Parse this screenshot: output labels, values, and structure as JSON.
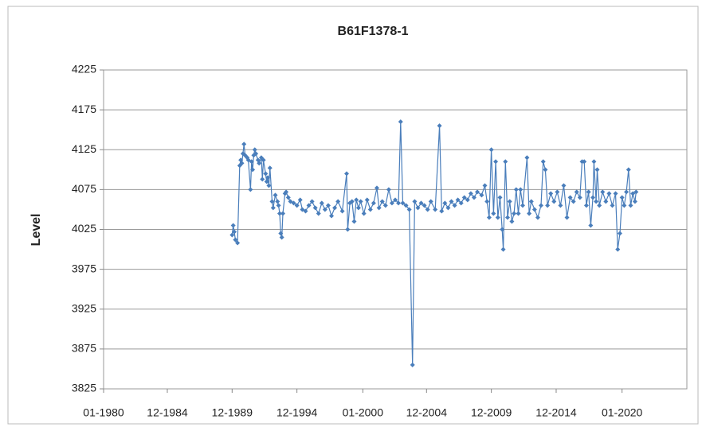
{
  "chart_data": {
    "type": "line",
    "title": "B61F1378-1",
    "y_label": "Level",
    "xlim": [
      "1980-01",
      "2025-01"
    ],
    "xticks": [
      {
        "value": "1980-01",
        "label": "01-1980"
      },
      {
        "value": "1984-12",
        "label": "12-1984"
      },
      {
        "value": "1989-12",
        "label": "12-1989"
      },
      {
        "value": "1994-12",
        "label": "12-1994"
      },
      {
        "value": "2000-01",
        "label": "01-2000"
      },
      {
        "value": "2004-12",
        "label": "12-2004"
      },
      {
        "value": "2009-12",
        "label": "12-2009"
      },
      {
        "value": "2014-12",
        "label": "12-2014"
      },
      {
        "value": "2020-01",
        "label": "01-2020"
      }
    ],
    "ylim": [
      3825,
      4225
    ],
    "yticks": [
      3825,
      3875,
      3925,
      3975,
      4025,
      4075,
      4125,
      4175,
      4225
    ],
    "grid": true,
    "x": [
      "1989-12",
      "1990-01",
      "1990-02",
      "1990-03",
      "1990-05",
      "1990-07",
      "1990-08",
      "1990-09",
      "1990-10",
      "1990-11",
      "1990-12",
      "1991-02",
      "1991-03",
      "1991-05",
      "1991-06",
      "1991-07",
      "1991-08",
      "1991-09",
      "1991-10",
      "1991-12",
      "1992-01",
      "1992-03",
      "1992-04",
      "1992-05",
      "1992-07",
      "1992-08",
      "1992-09",
      "1992-10",
      "1992-11",
      "1993-01",
      "1993-02",
      "1993-04",
      "1993-06",
      "1993-07",
      "1993-08",
      "1993-09",
      "1993-10",
      "1993-11",
      "1994-01",
      "1994-02",
      "1994-04",
      "1994-06",
      "1994-09",
      "1994-12",
      "1995-03",
      "1995-05",
      "1995-08",
      "1995-11",
      "1996-02",
      "1996-05",
      "1996-08",
      "1996-11",
      "1997-02",
      "1997-05",
      "1997-08",
      "1997-11",
      "1998-02",
      "1998-06",
      "1998-10",
      "1998-11",
      "1999-01",
      "1999-03",
      "1999-05",
      "1999-07",
      "1999-09",
      "1999-11",
      "2000-02",
      "2000-05",
      "2000-08",
      "2000-11",
      "2001-02",
      "2001-04",
      "2001-07",
      "2001-10",
      "2002-01",
      "2002-04",
      "2002-07",
      "2002-10",
      "2002-12",
      "2003-02",
      "2003-05",
      "2003-08",
      "2003-11",
      "2004-01",
      "2004-04",
      "2004-07",
      "2004-10",
      "2005-01",
      "2005-04",
      "2005-08",
      "2005-12",
      "2006-02",
      "2006-05",
      "2006-08",
      "2006-11",
      "2007-02",
      "2007-05",
      "2007-08",
      "2007-11",
      "2008-02",
      "2008-05",
      "2008-08",
      "2008-11",
      "2009-03",
      "2009-06",
      "2009-08",
      "2009-10",
      "2009-12",
      "2010-02",
      "2010-04",
      "2010-06",
      "2010-08",
      "2010-10",
      "2010-11",
      "2011-01",
      "2011-03",
      "2011-05",
      "2011-07",
      "2011-09",
      "2011-11",
      "2012-01",
      "2012-03",
      "2012-05",
      "2012-09",
      "2012-11",
      "2013-01",
      "2013-04",
      "2013-07",
      "2013-10",
      "2013-12",
      "2014-02",
      "2014-04",
      "2014-07",
      "2014-10",
      "2015-01",
      "2015-04",
      "2015-07",
      "2015-10",
      "2016-01",
      "2016-04",
      "2016-07",
      "2016-10",
      "2016-12",
      "2017-02",
      "2017-04",
      "2017-06",
      "2017-08",
      "2017-10",
      "2017-11",
      "2018-01",
      "2018-02",
      "2018-04",
      "2018-07",
      "2018-10",
      "2019-01",
      "2019-04",
      "2019-07",
      "2019-09",
      "2019-11",
      "2020-01",
      "2020-03",
      "2020-05",
      "2020-07",
      "2020-09",
      "2020-11",
      "2021-01",
      "2021-02"
    ],
    "series": [
      {
        "name": "Level",
        "color": "#4a7ebb",
        "values": [
          4018,
          4030,
          4022,
          4012,
          4008,
          4105,
          4112,
          4108,
          4120,
          4132,
          4118,
          4115,
          4112,
          4075,
          4110,
          4100,
          4118,
          4125,
          4120,
          4112,
          4108,
          4115,
          4088,
          4112,
          4095,
          4085,
          4090,
          4080,
          4102,
          4060,
          4052,
          4068,
          4060,
          4055,
          4045,
          4020,
          4015,
          4045,
          4070,
          4072,
          4065,
          4060,
          4058,
          4055,
          4062,
          4050,
          4048,
          4055,
          4060,
          4052,
          4045,
          4058,
          4050,
          4055,
          4042,
          4052,
          4060,
          4048,
          4095,
          4025,
          4058,
          4060,
          4035,
          4062,
          4052,
          4060,
          4045,
          4062,
          4050,
          4058,
          4077,
          4052,
          4060,
          4055,
          4075,
          4058,
          4062,
          4058,
          4160,
          4058,
          4055,
          4050,
          3855,
          4060,
          4052,
          4058,
          4055,
          4050,
          4060,
          4050,
          4155,
          4048,
          4058,
          4052,
          4060,
          4055,
          4062,
          4058,
          4065,
          4062,
          4070,
          4065,
          4072,
          4068,
          4080,
          4060,
          4040,
          4125,
          4045,
          4110,
          4040,
          4065,
          4025,
          4000,
          4110,
          4040,
          4060,
          4035,
          4045,
          4075,
          4045,
          4075,
          4055,
          4115,
          4045,
          4060,
          4050,
          4040,
          4055,
          4110,
          4100,
          4055,
          4070,
          4060,
          4072,
          4055,
          4080,
          4040,
          4065,
          4060,
          4072,
          4065,
          4110,
          4110,
          4055,
          4072,
          4030,
          4065,
          4110,
          4060,
          4100,
          4055,
          4072,
          4060,
          4070,
          4055,
          4070,
          4000,
          4020,
          4065,
          4055,
          4072,
          4100,
          4055,
          4070,
          4060,
          4072
        ]
      }
    ]
  }
}
